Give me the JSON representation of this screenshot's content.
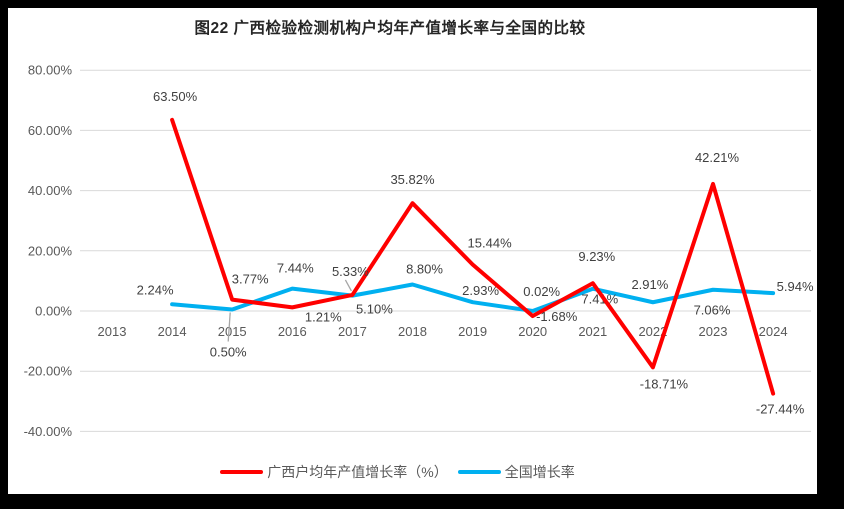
{
  "chart_data": {
    "type": "line",
    "title": "图22 广西检验检测机构户均年产值增长率与全国的比较",
    "categories": [
      "2013",
      "2014",
      "2015",
      "2016",
      "2017",
      "2018",
      "2019",
      "2020",
      "2021",
      "2022",
      "2023",
      "2024"
    ],
    "series": [
      {
        "name": "广西户均年产值增长率（%）",
        "color": "#FF0000",
        "values": [
          null,
          63.5,
          3.77,
          1.21,
          5.33,
          35.82,
          15.44,
          -1.68,
          9.23,
          -18.71,
          42.21,
          -27.44
        ]
      },
      {
        "name": "全国增长率",
        "color": "#00B0F0",
        "values": [
          null,
          2.24,
          0.5,
          7.44,
          5.1,
          8.8,
          2.93,
          0.02,
          7.41,
          2.91,
          7.06,
          5.94
        ]
      }
    ],
    "y_ticks": [
      "80.00%",
      "60.00%",
      "40.00%",
      "20.00%",
      "0.00%",
      "-20.00%",
      "-40.00%"
    ],
    "y_tick_values": [
      80,
      60,
      40,
      20,
      0,
      -20,
      -40
    ],
    "ylim": [
      -40,
      80
    ],
    "xlabel": "",
    "ylabel": "",
    "grid": true,
    "legend_position": "bottom",
    "data_labels": true,
    "label_format": "0.00%"
  },
  "style": {
    "grid_color": "#D9D9D9",
    "tick_label_color": "#595959",
    "data_label_color": "#404040",
    "leader_line_color": "#A6A6A6",
    "frame_color": "#000000",
    "background": "#FFFFFF"
  }
}
